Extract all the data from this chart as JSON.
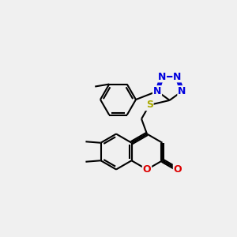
{
  "bg_color": "#f0f0f0",
  "bond_color": "#000000",
  "N_color": "#0000dd",
  "O_color": "#dd0000",
  "S_color": "#aaaa00",
  "lw": 1.5,
  "fs": 9,
  "doff": 0.12,
  "xlim": [
    0,
    10
  ],
  "ylim": [
    0,
    10
  ]
}
